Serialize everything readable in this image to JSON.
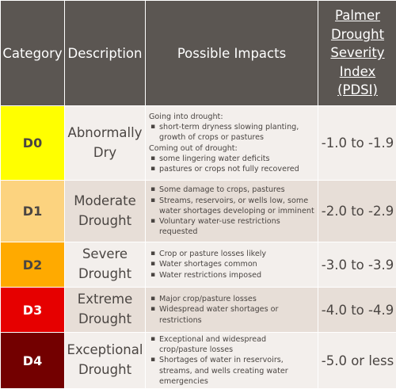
{
  "headers": {
    "category": "Category",
    "description": "Description",
    "impacts": "Possible Impacts",
    "pdsi": "Palmer Drought Severity Index (PDSI)"
  },
  "rows": [
    {
      "category": "D0",
      "color": "#ffff00",
      "text_color": "#4a4542",
      "description": "Abnormally Dry",
      "impacts": {
        "going_into": "Going into drought:",
        "going_items": [
          "short-term dryness slowing planting, growth of crops or pastures"
        ],
        "coming_out": "Coming out of drought:",
        "coming_items": [
          "some lingering water deficits",
          "pastures or crops not fully recovered"
        ]
      },
      "pdsi": "-1.0 to -1.9"
    },
    {
      "category": "D1",
      "color": "#fcd37f",
      "text_color": "#4a4542",
      "description": "Moderate Drought",
      "impacts": {
        "items": [
          "Some damage to crops, pastures",
          "Streams, reservoirs, or wells low, some water shortages developing or imminent",
          "Voluntary water-use restrictions requested"
        ]
      },
      "pdsi": "-2.0 to -2.9"
    },
    {
      "category": "D2",
      "color": "#ffaa00",
      "text_color": "#4a4542",
      "description": "Severe Drought",
      "impacts": {
        "items": [
          "Crop or pasture losses likely",
          "Water shortages common",
          "Water restrictions imposed"
        ]
      },
      "pdsi": "-3.0 to -3.9"
    },
    {
      "category": "D3",
      "color": "#e60000",
      "text_color": "#ffffff",
      "description": "Extreme Drought",
      "impacts": {
        "items": [
          "Major crop/pasture losses",
          "Widespread water shortages or restrictions"
        ]
      },
      "pdsi": "-4.0 to -4.9"
    },
    {
      "category": "D4",
      "color": "#730000",
      "text_color": "#ffffff",
      "description": "Exceptional Drought",
      "impacts": {
        "items": [
          "Exceptional and widespread crop/pasture losses",
          "Shortages of water in reservoirs, streams, and wells creating water emergencies"
        ]
      },
      "pdsi": "-5.0 or less"
    }
  ]
}
